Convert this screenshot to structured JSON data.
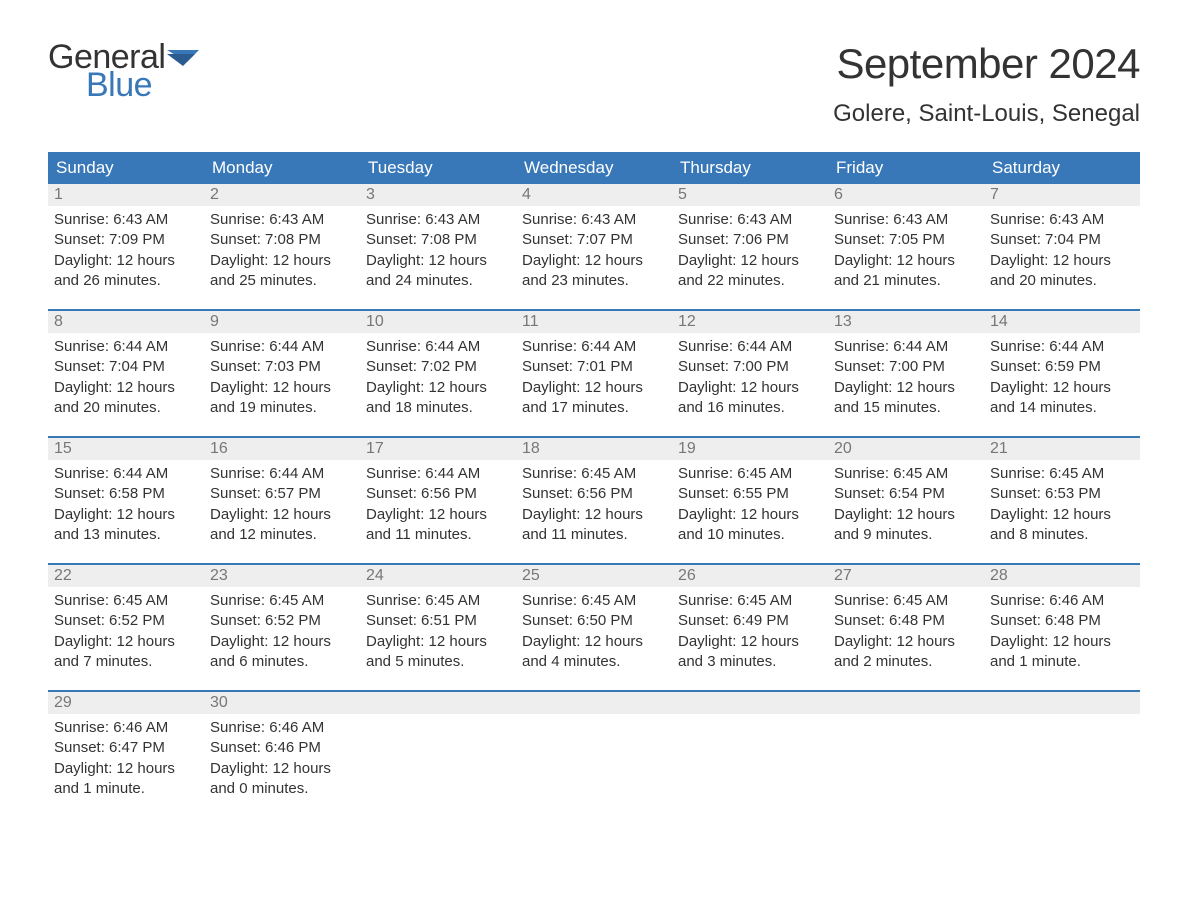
{
  "logo": {
    "word1": "General",
    "word2": "Blue",
    "accent_color": "#3878b8",
    "text_color": "#333333"
  },
  "title": "September 2024",
  "location": "Golere, Saint-Louis, Senegal",
  "colors": {
    "header_bg": "#3878b8",
    "header_text": "#ffffff",
    "daynum_bg": "#eeeeee",
    "daynum_text": "#777777",
    "body_text": "#333333",
    "week_border": "#3878b8",
    "page_bg": "#ffffff"
  },
  "typography": {
    "title_fontsize": 42,
    "location_fontsize": 24,
    "header_fontsize": 17,
    "daynum_fontsize": 16,
    "body_fontsize": 15,
    "font_family": "Arial"
  },
  "dayHeaders": [
    "Sunday",
    "Monday",
    "Tuesday",
    "Wednesday",
    "Thursday",
    "Friday",
    "Saturday"
  ],
  "labels": {
    "sunrise": "Sunrise: ",
    "sunset": "Sunset: ",
    "daylight": "Daylight: "
  },
  "weeks": [
    [
      {
        "num": "1",
        "sunrise": "6:43 AM",
        "sunset": "7:09 PM",
        "daylight": "12 hours and 26 minutes."
      },
      {
        "num": "2",
        "sunrise": "6:43 AM",
        "sunset": "7:08 PM",
        "daylight": "12 hours and 25 minutes."
      },
      {
        "num": "3",
        "sunrise": "6:43 AM",
        "sunset": "7:08 PM",
        "daylight": "12 hours and 24 minutes."
      },
      {
        "num": "4",
        "sunrise": "6:43 AM",
        "sunset": "7:07 PM",
        "daylight": "12 hours and 23 minutes."
      },
      {
        "num": "5",
        "sunrise": "6:43 AM",
        "sunset": "7:06 PM",
        "daylight": "12 hours and 22 minutes."
      },
      {
        "num": "6",
        "sunrise": "6:43 AM",
        "sunset": "7:05 PM",
        "daylight": "12 hours and 21 minutes."
      },
      {
        "num": "7",
        "sunrise": "6:43 AM",
        "sunset": "7:04 PM",
        "daylight": "12 hours and 20 minutes."
      }
    ],
    [
      {
        "num": "8",
        "sunrise": "6:44 AM",
        "sunset": "7:04 PM",
        "daylight": "12 hours and 20 minutes."
      },
      {
        "num": "9",
        "sunrise": "6:44 AM",
        "sunset": "7:03 PM",
        "daylight": "12 hours and 19 minutes."
      },
      {
        "num": "10",
        "sunrise": "6:44 AM",
        "sunset": "7:02 PM",
        "daylight": "12 hours and 18 minutes."
      },
      {
        "num": "11",
        "sunrise": "6:44 AM",
        "sunset": "7:01 PM",
        "daylight": "12 hours and 17 minutes."
      },
      {
        "num": "12",
        "sunrise": "6:44 AM",
        "sunset": "7:00 PM",
        "daylight": "12 hours and 16 minutes."
      },
      {
        "num": "13",
        "sunrise": "6:44 AM",
        "sunset": "7:00 PM",
        "daylight": "12 hours and 15 minutes."
      },
      {
        "num": "14",
        "sunrise": "6:44 AM",
        "sunset": "6:59 PM",
        "daylight": "12 hours and 14 minutes."
      }
    ],
    [
      {
        "num": "15",
        "sunrise": "6:44 AM",
        "sunset": "6:58 PM",
        "daylight": "12 hours and 13 minutes."
      },
      {
        "num": "16",
        "sunrise": "6:44 AM",
        "sunset": "6:57 PM",
        "daylight": "12 hours and 12 minutes."
      },
      {
        "num": "17",
        "sunrise": "6:44 AM",
        "sunset": "6:56 PM",
        "daylight": "12 hours and 11 minutes."
      },
      {
        "num": "18",
        "sunrise": "6:45 AM",
        "sunset": "6:56 PM",
        "daylight": "12 hours and 11 minutes."
      },
      {
        "num": "19",
        "sunrise": "6:45 AM",
        "sunset": "6:55 PM",
        "daylight": "12 hours and 10 minutes."
      },
      {
        "num": "20",
        "sunrise": "6:45 AM",
        "sunset": "6:54 PM",
        "daylight": "12 hours and 9 minutes."
      },
      {
        "num": "21",
        "sunrise": "6:45 AM",
        "sunset": "6:53 PM",
        "daylight": "12 hours and 8 minutes."
      }
    ],
    [
      {
        "num": "22",
        "sunrise": "6:45 AM",
        "sunset": "6:52 PM",
        "daylight": "12 hours and 7 minutes."
      },
      {
        "num": "23",
        "sunrise": "6:45 AM",
        "sunset": "6:52 PM",
        "daylight": "12 hours and 6 minutes."
      },
      {
        "num": "24",
        "sunrise": "6:45 AM",
        "sunset": "6:51 PM",
        "daylight": "12 hours and 5 minutes."
      },
      {
        "num": "25",
        "sunrise": "6:45 AM",
        "sunset": "6:50 PM",
        "daylight": "12 hours and 4 minutes."
      },
      {
        "num": "26",
        "sunrise": "6:45 AM",
        "sunset": "6:49 PM",
        "daylight": "12 hours and 3 minutes."
      },
      {
        "num": "27",
        "sunrise": "6:45 AM",
        "sunset": "6:48 PM",
        "daylight": "12 hours and 2 minutes."
      },
      {
        "num": "28",
        "sunrise": "6:46 AM",
        "sunset": "6:48 PM",
        "daylight": "12 hours and 1 minute."
      }
    ],
    [
      {
        "num": "29",
        "sunrise": "6:46 AM",
        "sunset": "6:47 PM",
        "daylight": "12 hours and 1 minute."
      },
      {
        "num": "30",
        "sunrise": "6:46 AM",
        "sunset": "6:46 PM",
        "daylight": "12 hours and 0 minutes."
      },
      null,
      null,
      null,
      null,
      null
    ]
  ]
}
